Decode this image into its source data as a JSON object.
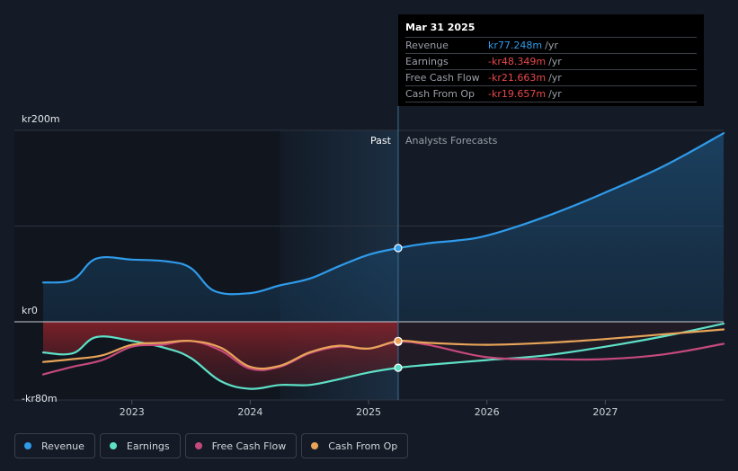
{
  "chart_data": {
    "type": "line",
    "y_unit_prefix": "kr",
    "ylim": [
      -80,
      200
    ],
    "y_tick_labels": [
      "kr200m",
      "kr0",
      "-kr80m"
    ],
    "y_tick_values": [
      200,
      0,
      -80
    ],
    "x_tick_labels": [
      "2023",
      "2024",
      "2025",
      "2026",
      "2027"
    ],
    "x_tick_values": [
      2023,
      2024,
      2025,
      2026,
      2027
    ],
    "xlim": [
      2022.25,
      2028.0
    ],
    "divider_x": 2025.25,
    "past_label": "Past",
    "forecast_label": "Analysts Forecasts",
    "grid": true,
    "legend_position": "bottom-left",
    "series": [
      {
        "name": "Revenue",
        "color": "#2f9bea",
        "x": [
          2022.25,
          2022.5,
          2022.7,
          2023.0,
          2023.3,
          2023.5,
          2023.7,
          2024.0,
          2024.25,
          2024.5,
          2024.75,
          2025.0,
          2025.25,
          2025.5,
          2025.75,
          2026.0,
          2026.5,
          2027.0,
          2027.5,
          2028.0
        ],
        "y": [
          41,
          44,
          66,
          65,
          63,
          56,
          32,
          30,
          38,
          45,
          58,
          70,
          77,
          82,
          85,
          90,
          110,
          135,
          163,
          197
        ]
      },
      {
        "name": "Earnings",
        "color": "#5ee0c7",
        "x": [
          2022.25,
          2022.5,
          2022.7,
          2023.0,
          2023.3,
          2023.5,
          2023.75,
          2024.0,
          2024.25,
          2024.5,
          2024.75,
          2025.0,
          2025.25,
          2025.5,
          2026.0,
          2026.5,
          2027.0,
          2027.5,
          2028.0
        ],
        "y": [
          -32,
          -33,
          -16,
          -20,
          -28,
          -38,
          -62,
          -70,
          -66,
          -66,
          -60,
          -53,
          -48,
          -45,
          -40,
          -35,
          -26,
          -15,
          -2
        ]
      },
      {
        "name": "Free Cash Flow",
        "color": "#c4497c",
        "x": [
          2022.25,
          2022.5,
          2022.75,
          2023.0,
          2023.25,
          2023.5,
          2023.75,
          2024.0,
          2024.25,
          2024.5,
          2024.75,
          2025.0,
          2025.25,
          2025.5,
          2026.0,
          2026.5,
          2027.0,
          2027.5,
          2028.0
        ],
        "y": [
          -55,
          -47,
          -40,
          -26,
          -24,
          -20,
          -30,
          -49,
          -47,
          -33,
          -26,
          -28,
          -21,
          -24,
          -37,
          -39,
          -39,
          -34,
          -23
        ]
      },
      {
        "name": "Cash From Op",
        "color": "#e8a458",
        "x": [
          2022.25,
          2022.5,
          2022.75,
          2023.0,
          2023.25,
          2023.5,
          2023.75,
          2024.0,
          2024.25,
          2024.5,
          2024.75,
          2025.0,
          2025.25,
          2025.5,
          2026.0,
          2026.5,
          2027.0,
          2027.5,
          2028.0
        ],
        "y": [
          -42,
          -39,
          -35,
          -24,
          -22,
          -20,
          -27,
          -47,
          -46,
          -32,
          -25,
          -28,
          -20,
          -22,
          -24,
          -22,
          -18,
          -13,
          -8
        ]
      }
    ]
  },
  "tooltip": {
    "date": "Mar 31 2025",
    "unit": "/yr",
    "rows": [
      {
        "label": "Revenue",
        "value": "kr77.248m",
        "color": "#2f9bea"
      },
      {
        "label": "Earnings",
        "value": "-kr48.349m",
        "color": "#e8484c"
      },
      {
        "label": "Free Cash Flow",
        "value": "-kr21.663m",
        "color": "#e8484c"
      },
      {
        "label": "Cash From Op",
        "value": "-kr19.657m",
        "color": "#e8484c"
      }
    ]
  },
  "legend": [
    {
      "label": "Revenue",
      "color": "#2f9bea"
    },
    {
      "label": "Earnings",
      "color": "#5ee0c7"
    },
    {
      "label": "Free Cash Flow",
      "color": "#c4497c"
    },
    {
      "label": "Cash From Op",
      "color": "#e8a458"
    }
  ]
}
